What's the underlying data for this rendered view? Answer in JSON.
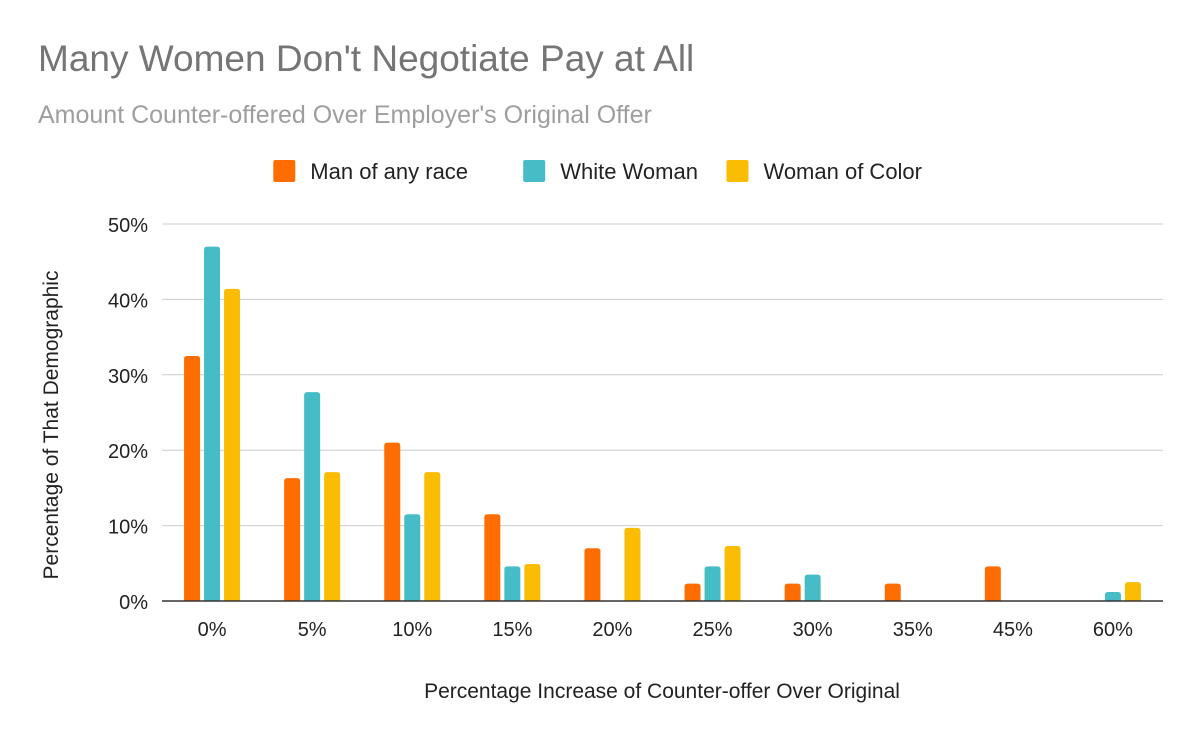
{
  "chart_data": {
    "type": "bar",
    "title": "Many Women Don't Negotiate Pay at All",
    "subtitle": "Amount Counter-offered Over Employer's Original Offer",
    "xlabel": "Percentage Increase of Counter-offer Over Original",
    "ylabel": "Percentage of That Demographic",
    "categories": [
      "0%",
      "5%",
      "10%",
      "15%",
      "20%",
      "25%",
      "30%",
      "35%",
      "45%",
      "60%"
    ],
    "y_ticks": [
      "0%",
      "10%",
      "20%",
      "30%",
      "40%",
      "50%"
    ],
    "ylim": [
      0,
      50
    ],
    "grid": true,
    "legend_position": "top",
    "series": [
      {
        "name": "Man of any race",
        "color": "#ff6d01",
        "values": [
          32.5,
          16.3,
          21.0,
          11.5,
          7.0,
          2.3,
          2.3,
          2.3,
          4.6,
          0
        ]
      },
      {
        "name": "White Woman",
        "color": "#46bdc6",
        "values": [
          47.0,
          27.7,
          11.5,
          4.6,
          0,
          4.6,
          3.5,
          0,
          0,
          1.2
        ]
      },
      {
        "name": "Woman of Color",
        "color": "#fbbc04",
        "values": [
          41.4,
          17.1,
          17.1,
          4.9,
          9.7,
          7.3,
          0,
          0,
          0,
          2.5
        ]
      }
    ]
  }
}
